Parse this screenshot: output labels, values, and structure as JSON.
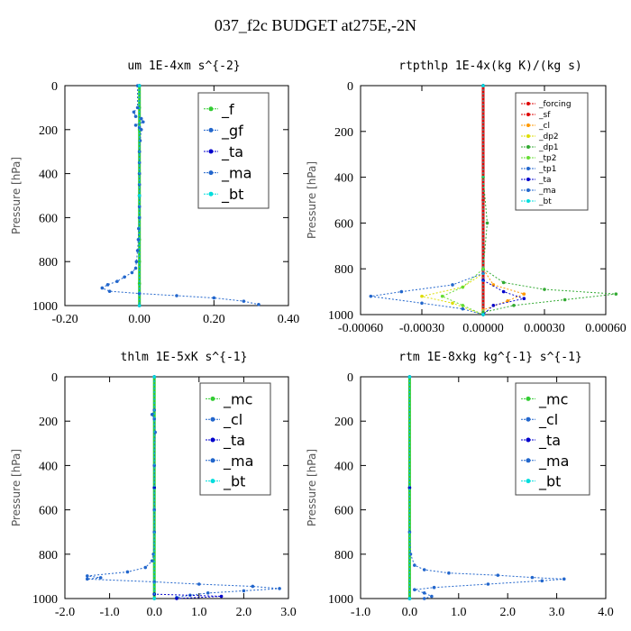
{
  "figure_title": "037_f2c  BUDGET at275E,-2N",
  "chart_data": [
    {
      "type": "line",
      "title": "um  1E-4xm s^{-2}",
      "ylabel": "Pressure [hPa]",
      "xlim": [
        -0.2,
        0.4
      ],
      "ylim": [
        1000,
        0
      ],
      "xticks": [
        "-0.20",
        "0.00",
        "0.20",
        "0.40"
      ],
      "yticks": [
        "0",
        "200",
        "400",
        "600",
        "800",
        "1000"
      ],
      "legend": [
        "_f",
        "_gf",
        "_ta",
        "_ma",
        "_bt"
      ],
      "series": [
        {
          "name": "_f",
          "color": "#33cc33",
          "points": [
            [
              0.0,
              0
            ],
            [
              0.0,
              100
            ],
            [
              0.0,
              200
            ],
            [
              0.0,
              300
            ],
            [
              0.0,
              400
            ],
            [
              0.0,
              500
            ],
            [
              0.0,
              600
            ],
            [
              0.0,
              700
            ],
            [
              0.0,
              800
            ],
            [
              0.0,
              900
            ],
            [
              0.0,
              1000
            ]
          ]
        },
        {
          "name": "_gf",
          "color": "#2266cc",
          "points": [
            [
              -0.005,
              0
            ],
            [
              -0.005,
              100
            ],
            [
              -0.015,
              120
            ],
            [
              -0.01,
              140
            ],
            [
              0.005,
              150
            ],
            [
              0.01,
              165
            ],
            [
              -0.01,
              180
            ],
            [
              0.0,
              190
            ],
            [
              0.005,
              200
            ],
            [
              0.002,
              250
            ],
            [
              0.0,
              300
            ],
            [
              0.0,
              350
            ],
            [
              0.0,
              400
            ],
            [
              0.0,
              450
            ],
            [
              0.0,
              500
            ],
            [
              0.0,
              550
            ],
            [
              0.0,
              600
            ],
            [
              -0.002,
              650
            ],
            [
              -0.003,
              700
            ],
            [
              -0.005,
              750
            ],
            [
              -0.008,
              800
            ],
            [
              -0.01,
              830
            ],
            [
              -0.02,
              850
            ],
            [
              -0.04,
              870
            ],
            [
              -0.06,
              890
            ],
            [
              -0.085,
              905
            ],
            [
              -0.1,
              920
            ],
            [
              -0.08,
              935
            ],
            [
              0.0,
              945
            ],
            [
              0.1,
              955
            ],
            [
              0.2,
              965
            ],
            [
              0.28,
              980
            ],
            [
              0.32,
              995
            ]
          ]
        },
        {
          "name": "_ta",
          "color": "#0000cc",
          "points": [
            [
              0.0,
              0
            ],
            [
              0.0,
              500
            ],
            [
              0.0,
              1000
            ]
          ]
        },
        {
          "name": "_ma",
          "color": "#2266cc",
          "points": [
            [
              0.0,
              0
            ],
            [
              0.0,
              500
            ],
            [
              0.0,
              1000
            ]
          ]
        },
        {
          "name": "_bt",
          "color": "#00dddd",
          "points": [
            [
              0.0,
              0
            ],
            [
              0.0,
              500
            ],
            [
              0.0,
              1000
            ]
          ]
        }
      ]
    },
    {
      "type": "line",
      "title": "rtpthlp  1E-4x(kg K)/(kg s)",
      "ylabel": "Pressure [hPa]",
      "xlim": [
        -0.0006,
        0.0006
      ],
      "ylim": [
        1000,
        0
      ],
      "xticks": [
        "-0.00060",
        "-0.00030",
        "0.00000",
        "0.00030",
        "0.00060"
      ],
      "yticks": [
        "0",
        "200",
        "400",
        "600",
        "800",
        "1000"
      ],
      "legend": [
        "_forcing",
        "_sf",
        "_cl",
        "_dp2",
        "_dp1",
        "_tp2",
        "_tp1",
        "_ta",
        "_ma",
        "_bt"
      ],
      "series": [
        {
          "name": "_forcing",
          "color": "#dd0000",
          "points": [
            [
              0.0,
              0
            ],
            [
              0.0,
              500
            ],
            [
              0.0,
              1000
            ]
          ]
        },
        {
          "name": "_sf",
          "color": "#dd0000",
          "points": [
            [
              0.0,
              0
            ],
            [
              0.0,
              1000
            ]
          ]
        },
        {
          "name": "_cl",
          "color": "#ff9900",
          "points": [
            [
              0.0,
              0
            ],
            [
              0.0,
              800
            ],
            [
              5e-05,
              870
            ],
            [
              0.0002,
              910
            ],
            [
              0.00012,
              940
            ],
            [
              0.0,
              980
            ],
            [
              0.0,
              1000
            ]
          ]
        },
        {
          "name": "_dp2",
          "color": "#dddd00",
          "points": [
            [
              0.0,
              0
            ],
            [
              0.0,
              820
            ],
            [
              -0.0001,
              880
            ],
            [
              -0.0003,
              920
            ],
            [
              -0.00015,
              950
            ],
            [
              0.0,
              1000
            ]
          ]
        },
        {
          "name": "_dp1",
          "color": "#33aa33",
          "points": [
            [
              0.0,
              0
            ],
            [
              0.0,
              400
            ],
            [
              2e-05,
              600
            ],
            [
              0.0,
              800
            ],
            [
              0.0001,
              860
            ],
            [
              0.0003,
              890
            ],
            [
              0.00065,
              910
            ],
            [
              0.0004,
              935
            ],
            [
              0.00015,
              960
            ],
            [
              0.0,
              990
            ]
          ]
        },
        {
          "name": "_tp2",
          "color": "#66dd33",
          "points": [
            [
              0.0,
              0
            ],
            [
              0.0,
              800
            ],
            [
              -0.0001,
              880
            ],
            [
              -0.0002,
              920
            ],
            [
              -0.0001,
              960
            ],
            [
              0.0,
              1000
            ]
          ]
        },
        {
          "name": "_tp1",
          "color": "#2266cc",
          "points": [
            [
              0.0,
              0
            ],
            [
              0.0,
              820
            ],
            [
              -0.00015,
              870
            ],
            [
              -0.0004,
              900
            ],
            [
              -0.00055,
              920
            ],
            [
              -0.0003,
              950
            ],
            [
              -0.0001,
              975
            ],
            [
              0.0,
              1000
            ]
          ]
        },
        {
          "name": "_ta",
          "color": "#0000cc",
          "points": [
            [
              0.0,
              0
            ],
            [
              0.0,
              850
            ],
            [
              0.0001,
              900
            ],
            [
              0.0002,
              930
            ],
            [
              5e-05,
              960
            ],
            [
              0.0,
              1000
            ]
          ]
        },
        {
          "name": "_ma",
          "color": "#2266cc",
          "points": [
            [
              0.0,
              0
            ],
            [
              0.0,
              1000
            ]
          ]
        },
        {
          "name": "_bt",
          "color": "#00dddd",
          "points": [
            [
              0.0,
              0
            ],
            [
              0.0,
              1000
            ]
          ]
        }
      ]
    },
    {
      "type": "line",
      "title": "thlm  1E-5xK s^{-1}",
      "ylabel": "Pressure [hPa]",
      "xlim": [
        -2.0,
        3.0
      ],
      "ylim": [
        1000,
        0
      ],
      "xticks": [
        "-2.0",
        "-1.0",
        "0.0",
        "1.0",
        "2.0",
        "3.0"
      ],
      "yticks": [
        "0",
        "200",
        "400",
        "600",
        "800",
        "1000"
      ],
      "legend": [
        "_mc",
        "_cl",
        "_ta",
        "_ma",
        "_bt"
      ],
      "series": [
        {
          "name": "_mc",
          "color": "#33cc33",
          "points": [
            [
              0.0,
              0
            ],
            [
              0.0,
              500
            ],
            [
              0.0,
              1000
            ]
          ]
        },
        {
          "name": "_cl",
          "color": "#2266cc",
          "points": [
            [
              0.0,
              0
            ],
            [
              0.0,
              150
            ],
            [
              -0.05,
              170
            ],
            [
              0.0,
              190
            ],
            [
              0.02,
              250
            ],
            [
              0.0,
              400
            ],
            [
              0.0,
              600
            ],
            [
              0.0,
              700
            ],
            [
              -0.02,
              800
            ],
            [
              -0.05,
              830
            ],
            [
              -0.2,
              860
            ],
            [
              -0.6,
              880
            ],
            [
              -1.5,
              898
            ],
            [
              -1.2,
              906
            ],
            [
              -1.5,
              912
            ],
            [
              0.0,
              925
            ],
            [
              1.0,
              935
            ],
            [
              2.2,
              945
            ],
            [
              2.8,
              955
            ],
            [
              2.0,
              965
            ],
            [
              1.2,
              975
            ],
            [
              0.8,
              985
            ],
            [
              0.5,
              995
            ]
          ]
        },
        {
          "name": "_ta",
          "color": "#0000cc",
          "points": [
            [
              0.0,
              0
            ],
            [
              0.0,
              500
            ],
            [
              0.0,
              980
            ],
            [
              1.5,
              990
            ],
            [
              0.5,
              1000
            ]
          ]
        },
        {
          "name": "_ma",
          "color": "#2266cc",
          "points": [
            [
              0.0,
              0
            ],
            [
              0.0,
              1000
            ]
          ]
        },
        {
          "name": "_bt",
          "color": "#00dddd",
          "points": [
            [
              0.0,
              0
            ],
            [
              0.0,
              1000
            ]
          ]
        }
      ]
    },
    {
      "type": "line",
      "title": "rtm  1E-8xkg kg^{-1} s^{-1}",
      "ylabel": "Pressure [hPa]",
      "xlim": [
        -1.0,
        4.0
      ],
      "ylim": [
        1000,
        0
      ],
      "xticks": [
        "-1.0",
        "0.0",
        "1.0",
        "2.0",
        "3.0",
        "4.0"
      ],
      "yticks": [
        "0",
        "200",
        "400",
        "600",
        "800",
        "1000"
      ],
      "legend": [
        "_mc",
        "_cl",
        "_ta",
        "_ma",
        "_bt"
      ],
      "series": [
        {
          "name": "_mc",
          "color": "#33cc33",
          "points": [
            [
              0.0,
              0
            ],
            [
              0.0,
              500
            ],
            [
              0.0,
              1000
            ]
          ]
        },
        {
          "name": "_cl",
          "color": "#2266cc",
          "points": [
            [
              0.0,
              0
            ],
            [
              0.0,
              700
            ],
            [
              0.02,
              800
            ],
            [
              0.1,
              850
            ],
            [
              0.3,
              870
            ],
            [
              0.8,
              885
            ],
            [
              1.8,
              895
            ],
            [
              2.5,
              905
            ],
            [
              3.15,
              912
            ],
            [
              2.7,
              920
            ],
            [
              1.6,
              935
            ],
            [
              0.5,
              950
            ],
            [
              0.1,
              960
            ],
            [
              0.3,
              975
            ],
            [
              0.45,
              990
            ],
            [
              0.3,
              1000
            ]
          ]
        },
        {
          "name": "_ta",
          "color": "#0000cc",
          "points": [
            [
              0.0,
              0
            ],
            [
              0.0,
              500
            ],
            [
              0.0,
              1000
            ]
          ]
        },
        {
          "name": "_ma",
          "color": "#2266cc",
          "points": [
            [
              0.0,
              0
            ],
            [
              0.0,
              1000
            ]
          ]
        },
        {
          "name": "_bt",
          "color": "#00dddd",
          "points": [
            [
              0.0,
              0
            ],
            [
              0.0,
              1000
            ]
          ]
        }
      ]
    }
  ]
}
